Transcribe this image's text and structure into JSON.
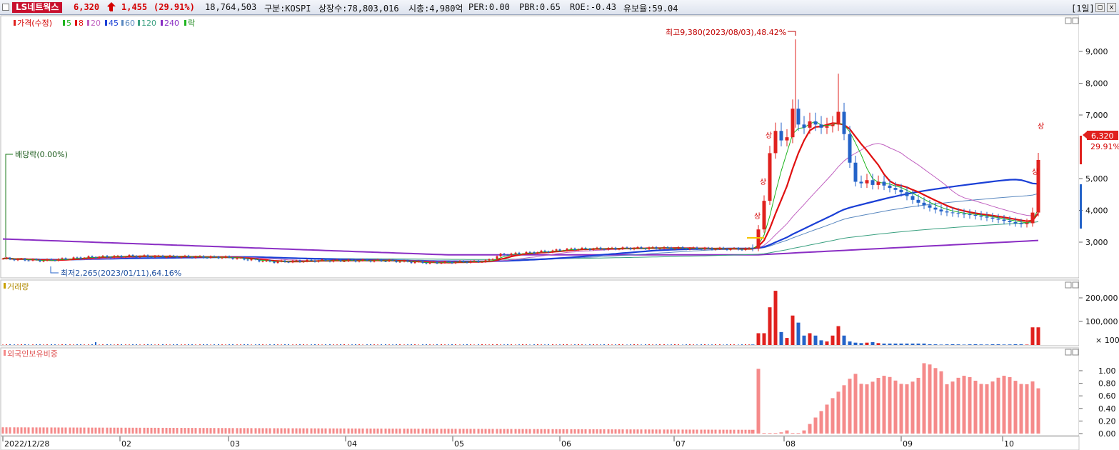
{
  "header": {
    "stock_name": "LS네트웍스",
    "price": "6,320",
    "change": "1,455",
    "change_pct": "(29.91%)",
    "volume": "18,764,503",
    "market": "구분:KOSPI",
    "listed_shares": "상장수:78,803,016",
    "market_cap": "시총:4,980억",
    "per": "PER:0.00",
    "pbr": "PBR:0.65",
    "roe": "ROE:-0.43",
    "float_ratio": "유보율:59.04",
    "period": "[1일]",
    "btn_minimize": "_",
    "btn_restore": "□",
    "btn_close": "x"
  },
  "price_panel": {
    "legend": {
      "price": "가격(수정)",
      "ma5": "5",
      "ma8": "8",
      "ma20": "20",
      "ma45": "45",
      "ma60": "60",
      "ma120": "120",
      "ma240": "240",
      "down": "락"
    },
    "high_annotation": "최고9,380(2023/08/03),48.42%",
    "low_annotation": "최저2,265(2023/01/11),64.16%",
    "dividend_annotation": "배당락(0.00%)",
    "limit_up_label": "상",
    "current_price_tag": "6,320",
    "current_pct_tag": "29.91%",
    "y_ticks": [
      "9,000",
      "8,000",
      "7,000",
      "5,000",
      "4,000",
      "3,000"
    ]
  },
  "volume_panel": {
    "title": "거래량",
    "y_ticks": [
      "200,000",
      "100,000"
    ],
    "unit": "× 100"
  },
  "foreign_panel": {
    "title": "외국인보유비중",
    "y_ticks": [
      "1.00",
      "0.80",
      "0.60",
      "0.40",
      "0.20",
      "0.00"
    ]
  },
  "x_axis": {
    "labels": [
      "2022/12/28",
      "02",
      "03",
      "04",
      "05",
      "06",
      "07",
      "08",
      "09",
      "10"
    ]
  },
  "colors": {
    "up": "#e0211e",
    "down": "#2463c8",
    "ma5": "#1fb51f",
    "ma8": "#e01010",
    "ma20": "#c060c0",
    "ma45": "#1a3fd6",
    "ma60": "#5a88c0",
    "ma120": "#3aa080",
    "ma240": "#8a2ec4",
    "foreign_bar": "#f58a8a"
  }
}
